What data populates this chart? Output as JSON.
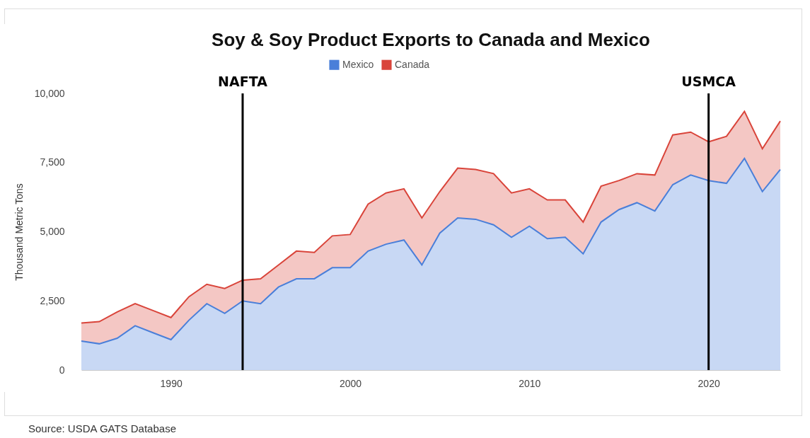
{
  "chart_data": {
    "type": "area",
    "title": "Soy & Soy Product Exports to Canada and Mexico",
    "ylabel": "Thousand Metric Tons",
    "x": [
      1985,
      1986,
      1987,
      1988,
      1989,
      1990,
      1991,
      1992,
      1993,
      1994,
      1995,
      1996,
      1997,
      1998,
      1999,
      2000,
      2001,
      2002,
      2003,
      2004,
      2005,
      2006,
      2007,
      2008,
      2009,
      2010,
      2011,
      2012,
      2013,
      2014,
      2015,
      2016,
      2017,
      2018,
      2019,
      2020,
      2021,
      2022,
      2023,
      2024
    ],
    "stacked": true,
    "series": [
      {
        "name": "Mexico",
        "color": "#4a7fd9",
        "values": [
          1050,
          950,
          1150,
          1600,
          1350,
          1100,
          1800,
          2400,
          2050,
          2500,
          2400,
          3000,
          3300,
          3300,
          3700,
          3700,
          4300,
          4550,
          4700,
          3800,
          4950,
          5500,
          5450,
          5250,
          4800,
          5200,
          4750,
          4800,
          4200,
          5350,
          5800,
          6050,
          5750,
          6700,
          7050,
          6850,
          6750,
          7650,
          6450,
          7250
        ]
      },
      {
        "name": "Canada",
        "color": "#d9443a",
        "values": [
          650,
          800,
          950,
          800,
          800,
          800,
          850,
          700,
          900,
          750,
          900,
          800,
          1000,
          950,
          1150,
          1200,
          1700,
          1850,
          1850,
          1700,
          1500,
          1800,
          1800,
          1850,
          1600,
          1350,
          1400,
          1350,
          1150,
          1300,
          1050,
          1050,
          1300,
          1800,
          1550,
          1400,
          1700,
          1700,
          1550,
          1750
        ]
      }
    ],
    "xlim": [
      1985,
      2024
    ],
    "xticks": [
      1990,
      2000,
      2010,
      2020
    ],
    "ylim": [
      0,
      10000
    ],
    "yticks": [
      0,
      {
        "value": 2500,
        "label": "2,500"
      },
      {
        "value": 5000,
        "label": "5,000"
      },
      {
        "value": 7500,
        "label": "7,500"
      },
      {
        "value": 10000,
        "label": "10,000"
      }
    ],
    "grid": false,
    "legend": "top",
    "ref_lines": [
      {
        "axis": "x",
        "value": 1994,
        "label": "NAFTA",
        "color": "#000000"
      },
      {
        "axis": "x",
        "value": 2020,
        "label": "USMCA",
        "color": "#000000"
      }
    ],
    "annotations": [
      "Source: USDA GATS Database"
    ]
  }
}
